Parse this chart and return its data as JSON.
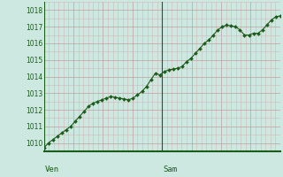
{
  "background_color": "#cce8e0",
  "line_color": "#1a5c1a",
  "marker_color": "#1a5c1a",
  "grid_color_major": "#c0a0a0",
  "grid_color_minor": "#d0b8b8",
  "ylim": [
    1009.5,
    1018.5
  ],
  "yticks": [
    1010,
    1011,
    1012,
    1013,
    1014,
    1015,
    1016,
    1017,
    1018
  ],
  "xlabel_labels": [
    "Ven",
    "Sam"
  ],
  "values": [
    1009.7,
    1010.0,
    1010.2,
    1010.4,
    1010.6,
    1010.8,
    1011.0,
    1011.3,
    1011.6,
    1011.9,
    1012.2,
    1012.4,
    1012.5,
    1012.6,
    1012.7,
    1012.8,
    1012.75,
    1012.7,
    1012.65,
    1012.6,
    1012.7,
    1012.9,
    1013.1,
    1013.4,
    1013.8,
    1014.2,
    1014.1,
    1014.3,
    1014.4,
    1014.45,
    1014.5,
    1014.6,
    1014.9,
    1015.1,
    1015.4,
    1015.7,
    1016.0,
    1016.2,
    1016.5,
    1016.8,
    1017.0,
    1017.1,
    1017.05,
    1017.0,
    1016.8,
    1016.5,
    1016.5,
    1016.6,
    1016.6,
    1016.8,
    1017.1,
    1017.4,
    1017.6,
    1017.65
  ]
}
